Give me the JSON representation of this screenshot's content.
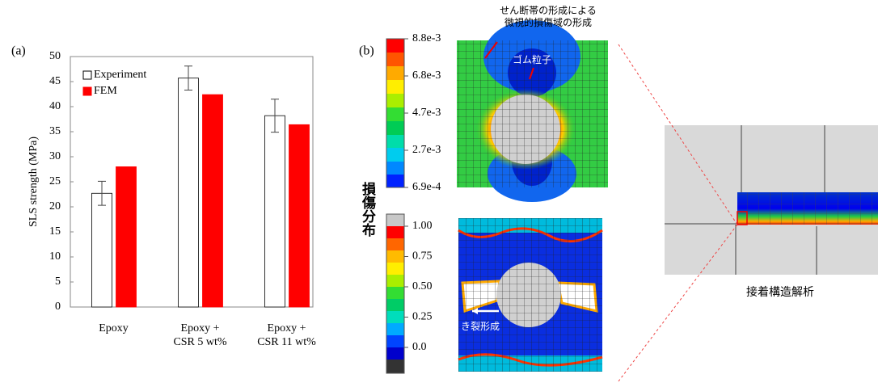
{
  "chart_data": {
    "type": "bar",
    "panel_label": "(a)",
    "y_label": "SLS strength (MPa)",
    "categories": [
      "Epoxy",
      "Epoxy +\nCSR 5 wt%",
      "Epoxy +\nCSR 11 wt%"
    ],
    "series": [
      {
        "name": "Experiment",
        "color": "#ffffff",
        "values": [
          22.7,
          45.7,
          38.2
        ],
        "errors": [
          2.4,
          2.4,
          3.3
        ]
      },
      {
        "name": "FEM",
        "color": "#ff0000",
        "values": [
          28.0,
          42.4,
          36.4
        ]
      }
    ],
    "ylim": [
      0,
      50
    ],
    "yticks": [
      0,
      5,
      10,
      15,
      20,
      25,
      30,
      35,
      40,
      45,
      50
    ],
    "legend": "upper left"
  },
  "panel_b": {
    "label": "(b)",
    "colorbar_title": "損傷分布",
    "strain_ticks": [
      "8.8e-3",
      "6.8e-3",
      "4.7e-3",
      "2.7e-3",
      "6.9e-4"
    ],
    "damage_ticks": [
      "1.00",
      "0.75",
      "0.50",
      "0.25",
      "0.0"
    ],
    "annotations": {
      "shear_band": "せん断帯の形成による\n微視的損傷域の形成",
      "rubber": "ゴム粒子",
      "crack": "き裂形成",
      "adhesive": "接着構造解析"
    }
  }
}
